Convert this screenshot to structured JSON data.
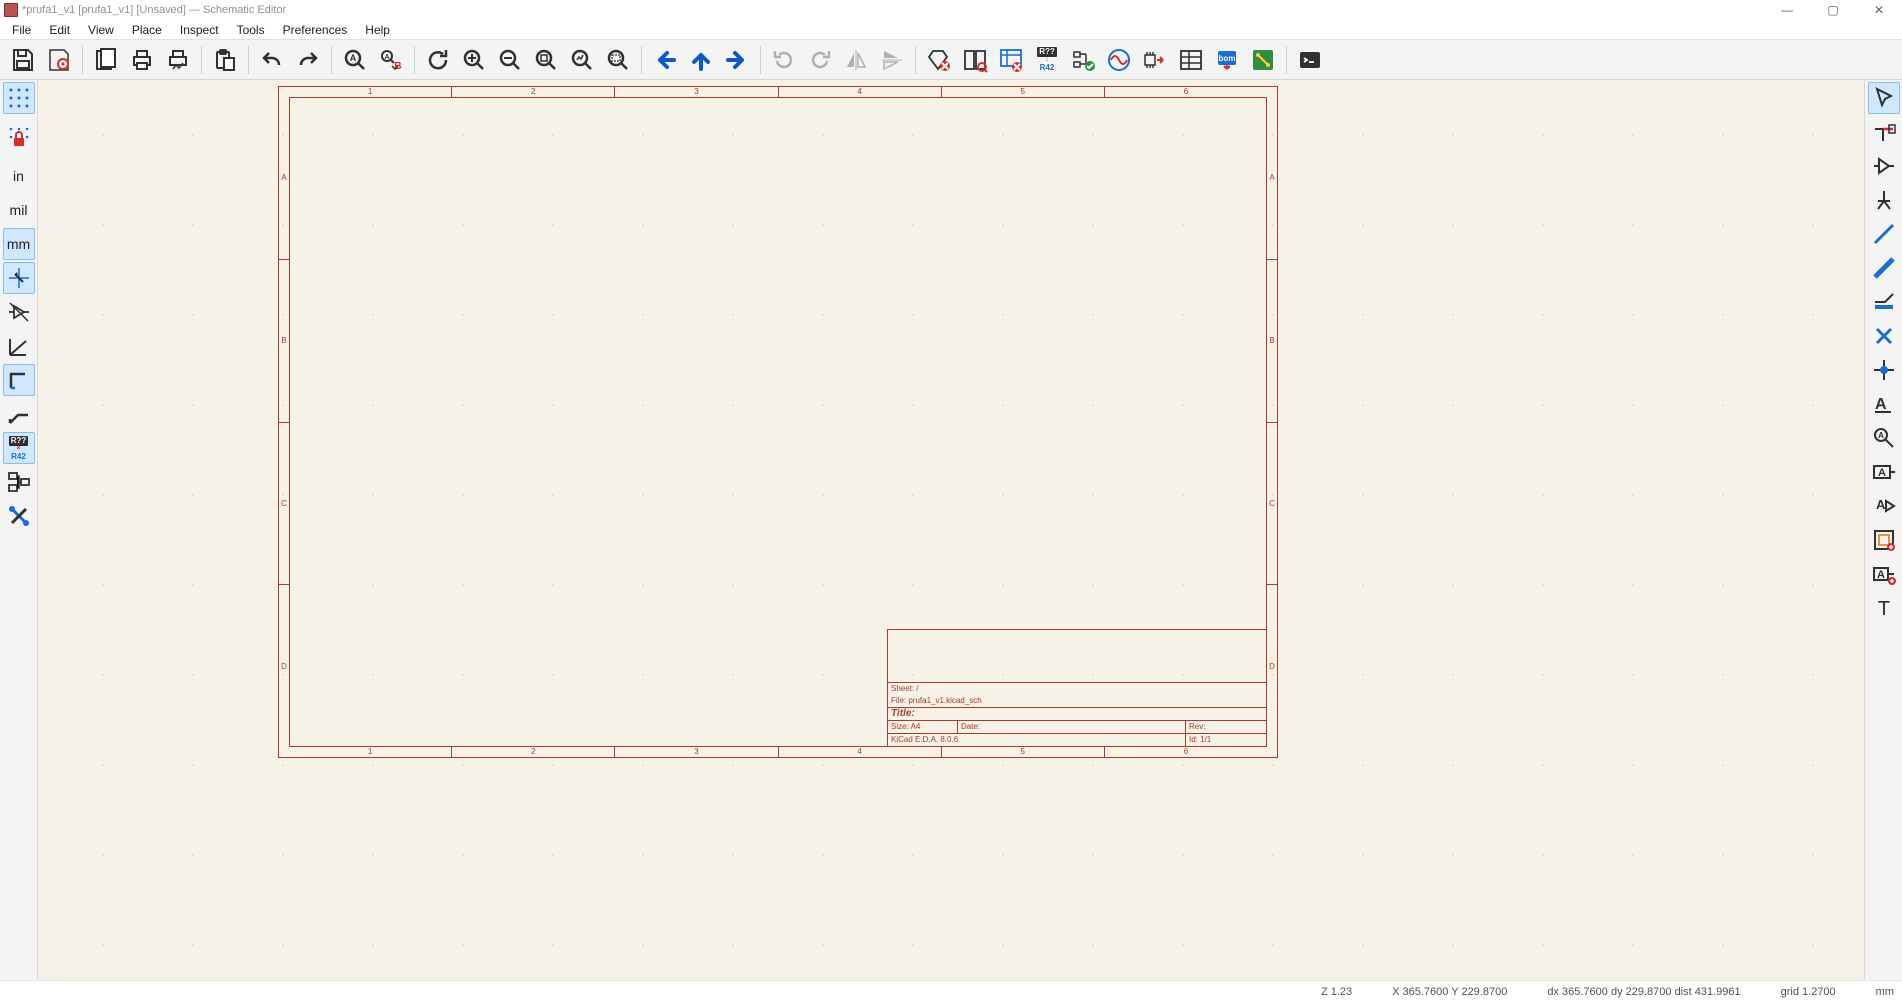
{
  "colors": {
    "window_bg": "#ffffff",
    "toolbar_bg": "#f4f4f4",
    "toolbar_border": "#d8d8d8",
    "canvas_bg": "#f6f2e8",
    "page_border": "#a83a2e",
    "icon_dark": "#303030",
    "icon_blue": "#1a6dd3",
    "icon_red": "#d12f2f",
    "icon_arrow": "#0f57c2",
    "icon_green": "#2f8f3e",
    "icon_orange": "#e07000",
    "active_highlight": "#cfe7ff",
    "text_muted": "#909090"
  },
  "title": "*prufa1_v1 [prufa1_v1] [Unsaved] — Schematic Editor",
  "window_controls": {
    "min": "—",
    "max": "▢",
    "close": "✕"
  },
  "menu": [
    "File",
    "Edit",
    "View",
    "Place",
    "Inspect",
    "Tools",
    "Preferences",
    "Help"
  ],
  "toolbar": [
    {
      "name": "save",
      "kind": "save"
    },
    {
      "name": "schematic-setup",
      "kind": "schsetup"
    },
    {
      "sep": true
    },
    {
      "name": "page-settings",
      "kind": "page"
    },
    {
      "name": "print",
      "kind": "print"
    },
    {
      "name": "plot",
      "kind": "plot"
    },
    {
      "sep": true
    },
    {
      "name": "paste",
      "kind": "paste"
    },
    {
      "sep": true
    },
    {
      "name": "undo",
      "kind": "undo"
    },
    {
      "name": "redo",
      "kind": "redo"
    },
    {
      "sep": true
    },
    {
      "name": "find",
      "kind": "find"
    },
    {
      "name": "find-replace",
      "kind": "findreplace"
    },
    {
      "sep": true
    },
    {
      "name": "refresh",
      "kind": "refresh"
    },
    {
      "name": "zoom-in",
      "kind": "zoomin"
    },
    {
      "name": "zoom-out",
      "kind": "zoomout"
    },
    {
      "name": "zoom-fit",
      "kind": "zoomfit"
    },
    {
      "name": "zoom-objects",
      "kind": "zoomobj"
    },
    {
      "name": "zoom-selection",
      "kind": "zoomsel"
    },
    {
      "sep": true
    },
    {
      "name": "nav-back",
      "kind": "navleft"
    },
    {
      "name": "nav-up",
      "kind": "navup"
    },
    {
      "name": "nav-forward",
      "kind": "navright"
    },
    {
      "sep": true
    },
    {
      "name": "rotate-ccw",
      "kind": "rotccw"
    },
    {
      "name": "rotate-cw",
      "kind": "rotcw"
    },
    {
      "name": "mirror-h",
      "kind": "mirrorh"
    },
    {
      "name": "mirror-v",
      "kind": "mirrorv"
    },
    {
      "sep": true
    },
    {
      "name": "erc",
      "kind": "erc"
    },
    {
      "name": "symbol-editor",
      "kind": "symedit"
    },
    {
      "name": "symbol-browse",
      "kind": "symbrowse"
    },
    {
      "name": "annotate",
      "kind": "annotate"
    },
    {
      "name": "inspect-nets",
      "kind": "inspect"
    },
    {
      "name": "sim",
      "kind": "sim"
    },
    {
      "name": "assign-fp",
      "kind": "assignfp"
    },
    {
      "name": "edit-fields",
      "kind": "fields"
    },
    {
      "name": "bom",
      "kind": "bom"
    },
    {
      "name": "pcb",
      "kind": "pcb"
    },
    {
      "sep": true
    },
    {
      "name": "scripting",
      "kind": "script"
    }
  ],
  "left_toolbar": [
    {
      "name": "toggle-grid",
      "kind": "gridtoggle",
      "active": true
    },
    {
      "name": "grid-override",
      "kind": "gridlock",
      "tall": true
    },
    {
      "name": "unit-in",
      "kind": "unit",
      "label": "in"
    },
    {
      "name": "unit-mil",
      "kind": "unit",
      "label": "mil"
    },
    {
      "name": "unit-mm",
      "kind": "unit",
      "label": "mm",
      "active": true
    },
    {
      "name": "full-crosshair",
      "kind": "crosshair",
      "active": true
    },
    {
      "name": "hidden-pins",
      "kind": "hiddenpins"
    },
    {
      "name": "free-angle",
      "kind": "freeangle"
    },
    {
      "name": "90deg-mode",
      "kind": "deg90",
      "active": true
    },
    {
      "name": "45deg-mode",
      "kind": "deg45"
    },
    {
      "name": "annotate-auto",
      "kind": "annotate2",
      "active": true
    },
    {
      "name": "hierarchy",
      "kind": "hierarchy"
    },
    {
      "name": "properties",
      "kind": "props"
    }
  ],
  "right_toolbar": [
    {
      "name": "select",
      "kind": "select",
      "active": true
    },
    {
      "name": "highlight-net",
      "kind": "highlight"
    },
    {
      "name": "add-symbol",
      "kind": "addsymbol"
    },
    {
      "name": "add-power",
      "kind": "addpower"
    },
    {
      "name": "add-wire",
      "kind": "wire"
    },
    {
      "name": "add-bus",
      "kind": "bus"
    },
    {
      "name": "bus-entry",
      "kind": "busentry"
    },
    {
      "name": "no-connect",
      "kind": "noconnect"
    },
    {
      "name": "junction",
      "kind": "junction"
    },
    {
      "name": "label",
      "kind": "label"
    },
    {
      "name": "net-class",
      "kind": "netclass"
    },
    {
      "name": "global-label",
      "kind": "glabel"
    },
    {
      "name": "hier-label",
      "kind": "hlabel"
    },
    {
      "name": "hier-sheet",
      "kind": "hsheet"
    },
    {
      "name": "sheet-pin",
      "kind": "sheetpin"
    },
    {
      "name": "text",
      "kind": "text"
    }
  ],
  "sheet": {
    "ruler_h": [
      "1",
      "2",
      "3",
      "4",
      "5",
      "6"
    ],
    "ruler_v": [
      "A",
      "B",
      "C",
      "D"
    ],
    "titleblock": {
      "sheet_label": "Sheet: /",
      "file_label": "File: prufa1_v1.kicad_sch",
      "title_label": "Title:",
      "size_label": "Size: A4",
      "date_label": "Date:",
      "rev_label": "Rev:",
      "prog_label": "KiCad E.D.A. 8.0.6",
      "id_label": "Id: 1/1"
    }
  },
  "status": {
    "zoom": "Z 1.23",
    "xy": "X 365.7600  Y 229.8700",
    "dxy": "dx 365.7600  dy 229.8700  dist 431.9961",
    "grid": "grid 1.2700",
    "unit": "mm"
  }
}
